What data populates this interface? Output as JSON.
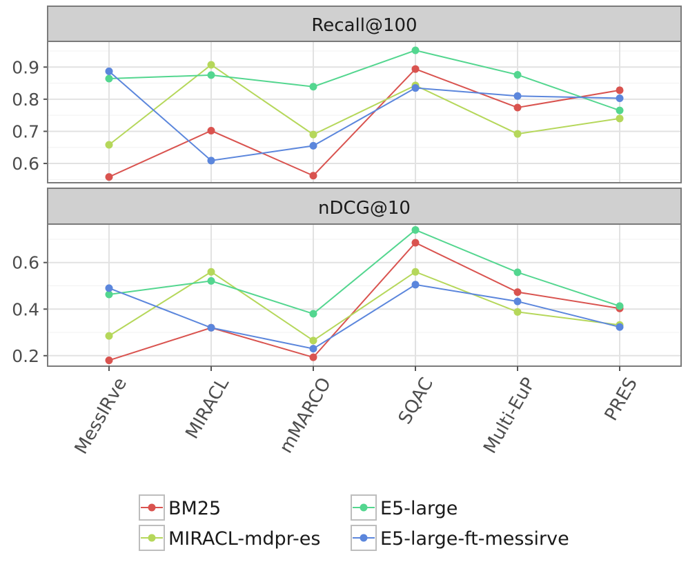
{
  "chart_data": {
    "type": "line",
    "categories": [
      "MessIRve",
      "MIRACL",
      "mMARCO",
      "SQAC",
      "Multi-EuP",
      "PRES"
    ],
    "series_meta": [
      {
        "name": "BM25",
        "color": "#d9534f"
      },
      {
        "name": "MIRACL-mdpr-es",
        "color": "#b5d75a"
      },
      {
        "name": "E5-large",
        "color": "#53d68f"
      },
      {
        "name": "E5-large-ft-messirve",
        "color": "#5b86dc"
      }
    ],
    "facets": [
      {
        "title": "Recall@100",
        "ylim": [
          0.54,
          0.98
        ],
        "yticks": [
          0.6,
          0.7,
          0.8,
          0.9
        ],
        "ytick_labels": [
          "0.6",
          "0.7",
          "0.8",
          "0.9"
        ],
        "series": [
          {
            "name": "BM25",
            "values": [
              0.558,
              0.702,
              0.562,
              0.894,
              0.774,
              0.828
            ]
          },
          {
            "name": "MIRACL-mdpr-es",
            "values": [
              0.658,
              0.907,
              0.69,
              0.843,
              0.692,
              0.74
            ]
          },
          {
            "name": "E5-large",
            "values": [
              0.864,
              0.875,
              0.839,
              0.952,
              0.876,
              0.765
            ]
          },
          {
            "name": "E5-large-ft-messirve",
            "values": [
              0.887,
              0.609,
              0.655,
              0.835,
              0.81,
              0.803
            ]
          }
        ]
      },
      {
        "title": "nDCG@10",
        "ylim": [
          0.155,
          0.765
        ],
        "yticks": [
          0.2,
          0.4,
          0.6
        ],
        "ytick_labels": [
          "0.2",
          "0.4",
          "0.6"
        ],
        "series": [
          {
            "name": "BM25",
            "values": [
              0.18,
              0.32,
              0.193,
              0.685,
              0.473,
              0.403
            ]
          },
          {
            "name": "MIRACL-mdpr-es",
            "values": [
              0.285,
              0.56,
              0.265,
              0.56,
              0.388,
              0.332
            ]
          },
          {
            "name": "E5-large",
            "values": [
              0.463,
              0.521,
              0.38,
              0.74,
              0.558,
              0.413
            ]
          },
          {
            "name": "E5-large-ft-messirve",
            "values": [
              0.49,
              0.32,
              0.23,
              0.505,
              0.433,
              0.323
            ]
          }
        ]
      }
    ],
    "legend": {
      "position": "bottom",
      "entries": [
        "BM25",
        "E5-large",
        "MIRACL-mdpr-es",
        "E5-large-ft-messirve"
      ]
    }
  }
}
